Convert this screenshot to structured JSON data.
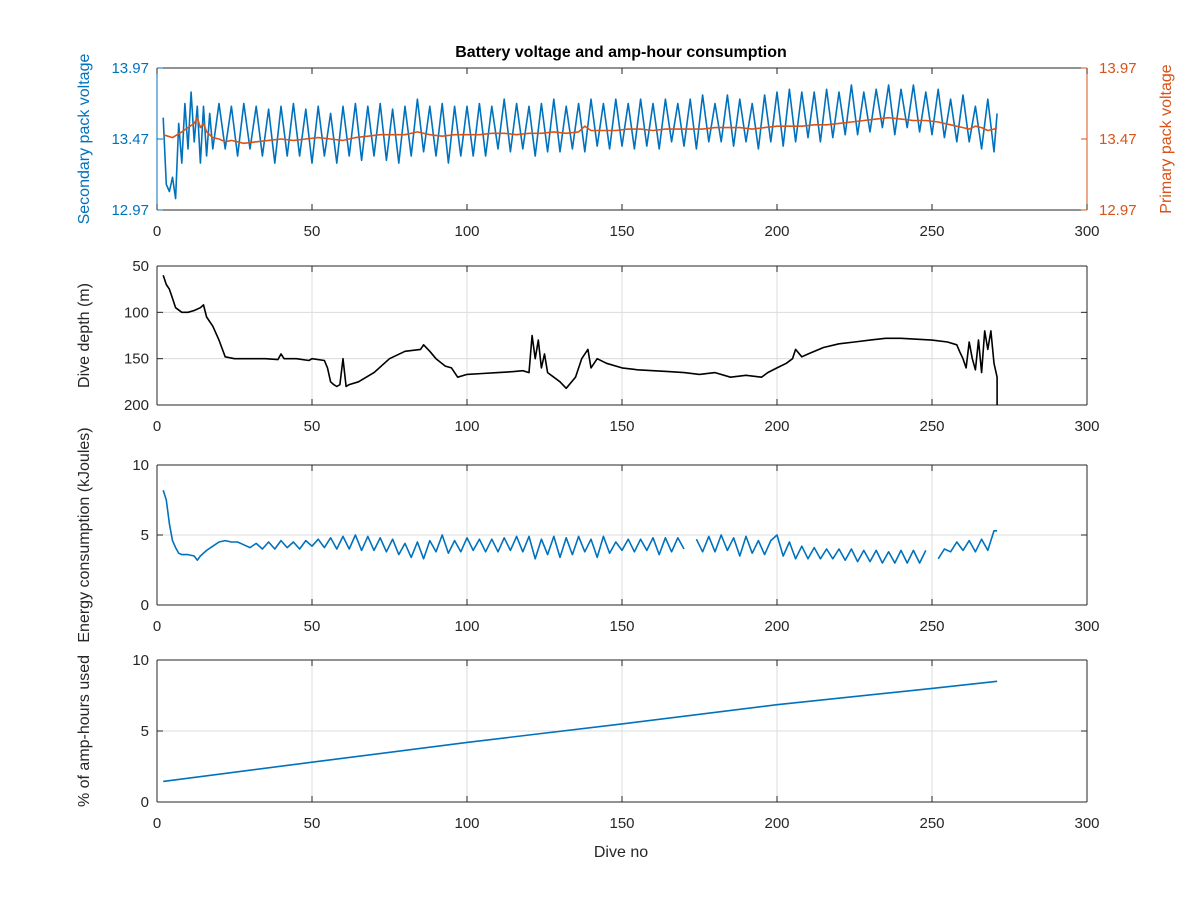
{
  "figure": {
    "title": "Battery voltage and amp-hour consumption",
    "xlabel": "Dive no"
  },
  "chart_data": [
    {
      "type": "line",
      "title": "Battery voltage and amp-hour consumption",
      "xlabel": "",
      "xlim": [
        0,
        300
      ],
      "xticks": [
        0,
        50,
        100,
        150,
        200,
        250,
        300
      ],
      "grid": false,
      "ylabel_left": "Secondary pack voltage",
      "ylabel_right": "Primary pack voltage",
      "ylim": [
        12.97,
        13.97
      ],
      "yticks": [
        12.97,
        13.47,
        13.97
      ],
      "colors": {
        "left": "#0072BD",
        "right": "#D95319"
      },
      "series": [
        {
          "axis": "left",
          "color": "#0072BD",
          "x": [
            2,
            3,
            4,
            5,
            6,
            7,
            8,
            9,
            10,
            11,
            12,
            13,
            14,
            15,
            16,
            17,
            18,
            20,
            22,
            24,
            26,
            28,
            30,
            32,
            34,
            36,
            38,
            40,
            42,
            44,
            46,
            48,
            50,
            52,
            54,
            56,
            58,
            60,
            62,
            64,
            66,
            68,
            70,
            72,
            74,
            76,
            78,
            80,
            82,
            84,
            86,
            88,
            90,
            92,
            94,
            96,
            98,
            100,
            102,
            104,
            106,
            108,
            110,
            112,
            114,
            116,
            118,
            120,
            122,
            124,
            126,
            128,
            130,
            132,
            134,
            136,
            138,
            140,
            142,
            144,
            146,
            148,
            150,
            152,
            154,
            156,
            158,
            160,
            162,
            164,
            166,
            168,
            170,
            172,
            174,
            176,
            178,
            180,
            182,
            184,
            186,
            188,
            190,
            192,
            194,
            196,
            198,
            200,
            202,
            204,
            206,
            208,
            210,
            212,
            214,
            216,
            218,
            220,
            222,
            224,
            226,
            228,
            230,
            232,
            234,
            236,
            238,
            240,
            242,
            244,
            246,
            248,
            250,
            252,
            254,
            256,
            258,
            260,
            262,
            264,
            266,
            268,
            270,
            271
          ],
          "values": [
            13.62,
            13.15,
            13.1,
            13.2,
            13.05,
            13.58,
            13.3,
            13.72,
            13.4,
            13.8,
            13.45,
            13.7,
            13.3,
            13.7,
            13.35,
            13.65,
            13.4,
            13.72,
            13.4,
            13.7,
            13.35,
            13.72,
            13.4,
            13.7,
            13.35,
            13.68,
            13.3,
            13.7,
            13.35,
            13.72,
            13.35,
            13.68,
            13.3,
            13.7,
            13.35,
            13.65,
            13.3,
            13.7,
            13.35,
            13.72,
            13.32,
            13.7,
            13.35,
            13.72,
            13.32,
            13.68,
            13.3,
            13.7,
            13.35,
            13.75,
            13.38,
            13.7,
            13.35,
            13.72,
            13.3,
            13.7,
            13.35,
            13.7,
            13.35,
            13.72,
            13.35,
            13.7,
            13.4,
            13.75,
            13.38,
            13.72,
            13.4,
            13.7,
            13.35,
            13.72,
            13.38,
            13.75,
            13.38,
            13.7,
            13.4,
            13.72,
            13.38,
            13.75,
            13.42,
            13.72,
            13.4,
            13.75,
            13.42,
            13.72,
            13.4,
            13.75,
            13.42,
            13.72,
            13.4,
            13.75,
            13.45,
            13.72,
            13.42,
            13.75,
            13.4,
            13.78,
            13.45,
            13.72,
            13.45,
            13.78,
            13.42,
            13.75,
            13.45,
            13.72,
            13.4,
            13.78,
            13.45,
            13.8,
            13.42,
            13.82,
            13.45,
            13.8,
            13.48,
            13.8,
            13.45,
            13.82,
            13.48,
            13.8,
            13.5,
            13.85,
            13.5,
            13.8,
            13.52,
            13.82,
            13.55,
            13.85,
            13.5,
            13.82,
            13.55,
            13.85,
            13.52,
            13.8,
            13.5,
            13.82,
            13.48,
            13.75,
            13.45,
            13.78,
            13.45,
            13.7,
            13.4,
            13.75,
            13.38,
            13.65
          ]
        },
        {
          "axis": "right",
          "color": "#D95319",
          "x": [
            2,
            5,
            8,
            10,
            12,
            13,
            14,
            15,
            16,
            18,
            20,
            22,
            24,
            28,
            32,
            36,
            40,
            44,
            48,
            52,
            56,
            60,
            64,
            68,
            72,
            76,
            80,
            84,
            88,
            92,
            96,
            100,
            104,
            108,
            112,
            116,
            120,
            124,
            128,
            132,
            136,
            138,
            140,
            144,
            148,
            152,
            156,
            160,
            164,
            168,
            172,
            176,
            180,
            184,
            188,
            192,
            196,
            200,
            204,
            208,
            212,
            216,
            220,
            224,
            228,
            232,
            236,
            240,
            244,
            248,
            252,
            256,
            260,
            262,
            264,
            266,
            268,
            270,
            271
          ],
          "values": [
            13.5,
            13.48,
            13.52,
            13.55,
            13.58,
            13.62,
            13.55,
            13.58,
            13.52,
            13.48,
            13.47,
            13.45,
            13.46,
            13.44,
            13.45,
            13.46,
            13.47,
            13.46,
            13.47,
            13.48,
            13.47,
            13.46,
            13.48,
            13.49,
            13.5,
            13.5,
            13.5,
            13.52,
            13.5,
            13.49,
            13.5,
            13.5,
            13.5,
            13.51,
            13.51,
            13.5,
            13.51,
            13.51,
            13.52,
            13.51,
            13.52,
            13.56,
            13.53,
            13.53,
            13.53,
            13.54,
            13.54,
            13.53,
            13.54,
            13.54,
            13.54,
            13.54,
            13.55,
            13.55,
            13.55,
            13.54,
            13.55,
            13.56,
            13.56,
            13.56,
            13.57,
            13.57,
            13.58,
            13.59,
            13.6,
            13.61,
            13.62,
            13.61,
            13.6,
            13.6,
            13.59,
            13.57,
            13.55,
            13.54,
            13.56,
            13.55,
            13.53,
            13.54,
            13.55
          ]
        }
      ]
    },
    {
      "type": "line",
      "xlim": [
        0,
        300
      ],
      "xticks": [
        0,
        50,
        100,
        150,
        200,
        250,
        300
      ],
      "ylabel": "Dive depth (m)",
      "ylim": [
        50,
        200
      ],
      "y_reversed": true,
      "yticks": [
        50,
        100,
        150,
        200
      ],
      "grid": true,
      "series": [
        {
          "color": "#000000",
          "x": [
            2,
            3,
            4,
            5,
            6,
            8,
            10,
            12,
            14,
            15,
            16,
            18,
            20,
            22,
            25,
            30,
            35,
            39,
            40,
            41,
            45,
            49,
            50,
            54,
            55,
            56,
            57,
            58,
            59,
            60,
            61,
            62,
            65,
            70,
            75,
            80,
            85,
            86,
            88,
            90,
            93,
            95,
            97,
            100,
            105,
            110,
            115,
            118,
            120,
            121,
            122,
            123,
            124,
            125,
            126,
            128,
            130,
            132,
            135,
            137,
            139,
            140,
            142,
            145,
            150,
            155,
            160,
            165,
            170,
            175,
            180,
            185,
            190,
            195,
            197,
            200,
            203,
            205,
            206,
            208,
            210,
            215,
            220,
            225,
            230,
            235,
            240,
            245,
            250,
            255,
            258,
            259,
            260,
            261,
            262,
            263,
            264,
            265,
            266,
            267,
            268,
            269,
            270,
            271
          ],
          "values": [
            60,
            70,
            75,
            85,
            95,
            100,
            100,
            98,
            95,
            92,
            105,
            115,
            130,
            148,
            150,
            150,
            150,
            151,
            145,
            150,
            150,
            152,
            150,
            152,
            160,
            175,
            178,
            180,
            178,
            150,
            180,
            178,
            175,
            165,
            150,
            142,
            140,
            135,
            142,
            150,
            158,
            160,
            170,
            167,
            166,
            165,
            164,
            163,
            165,
            125,
            150,
            130,
            160,
            145,
            165,
            170,
            175,
            182,
            170,
            150,
            140,
            160,
            150,
            155,
            160,
            162,
            163,
            164,
            165,
            167,
            165,
            170,
            168,
            170,
            165,
            160,
            155,
            150,
            140,
            148,
            145,
            138,
            134,
            132,
            130,
            128,
            128,
            129,
            130,
            132,
            135,
            143,
            150,
            160,
            132,
            150,
            162,
            130,
            165,
            120,
            140,
            120,
            155,
            170
          ],
          "bottom_drop": [
            [
              271,
              200
            ]
          ]
        }
      ]
    },
    {
      "type": "line",
      "xlim": [
        0,
        300
      ],
      "xticks": [
        0,
        50,
        100,
        150,
        200,
        250,
        300
      ],
      "ylabel": "Energy consumption (kJoules)",
      "ylim": [
        0,
        10
      ],
      "yticks": [
        0,
        5,
        10
      ],
      "grid": true,
      "series": [
        {
          "color": "#0072BD",
          "x": [
            2,
            3,
            4,
            5,
            6,
            7,
            8,
            10,
            12,
            13,
            14,
            16,
            18,
            20,
            22,
            24,
            26,
            28,
            30,
            32,
            34,
            36,
            38,
            40,
            42,
            44,
            46,
            48,
            50,
            52,
            54,
            56,
            58,
            60,
            62,
            64,
            66,
            68,
            70,
            72,
            74,
            76,
            78,
            80,
            82,
            84,
            86,
            88,
            90,
            92,
            94,
            96,
            98,
            100,
            102,
            104,
            106,
            108,
            110,
            112,
            114,
            116,
            118,
            120,
            122,
            124,
            126,
            128,
            130,
            132,
            134,
            136,
            138,
            140,
            142,
            144,
            146,
            148,
            150,
            152,
            154,
            156,
            158,
            160,
            162,
            164,
            166,
            168,
            170,
            null,
            174,
            176,
            178,
            180,
            182,
            184,
            186,
            188,
            190,
            192,
            194,
            196,
            198,
            200,
            202,
            204,
            206,
            208,
            210,
            212,
            214,
            216,
            218,
            220,
            222,
            224,
            226,
            228,
            230,
            232,
            234,
            236,
            238,
            240,
            242,
            244,
            246,
            248,
            null,
            252,
            254,
            256,
            258,
            260,
            262,
            264,
            266,
            268,
            270,
            271
          ],
          "values": [
            8.2,
            7.5,
            5.8,
            4.6,
            4.1,
            3.7,
            3.6,
            3.6,
            3.5,
            3.2,
            3.5,
            3.9,
            4.2,
            4.5,
            4.6,
            4.5,
            4.5,
            4.3,
            4.1,
            4.4,
            4.0,
            4.5,
            4.0,
            4.6,
            4.1,
            4.5,
            4.0,
            4.6,
            4.2,
            4.7,
            4.1,
            4.8,
            4.0,
            4.9,
            4.0,
            5.0,
            3.9,
            4.9,
            3.9,
            4.8,
            3.8,
            4.7,
            3.6,
            4.4,
            3.4,
            4.5,
            3.3,
            4.6,
            3.8,
            5.0,
            3.7,
            4.6,
            3.8,
            4.8,
            3.9,
            4.7,
            3.8,
            4.7,
            3.8,
            4.8,
            3.9,
            4.9,
            3.8,
            4.9,
            3.3,
            4.7,
            3.6,
            4.9,
            3.4,
            4.8,
            3.6,
            4.9,
            3.8,
            4.7,
            3.4,
            4.9,
            3.7,
            4.5,
            3.9,
            4.7,
            3.8,
            4.7,
            3.9,
            4.8,
            3.6,
            4.8,
            3.8,
            4.8,
            4.0,
            null,
            4.7,
            3.8,
            4.9,
            3.8,
            5.0,
            3.9,
            4.8,
            3.5,
            4.9,
            3.7,
            4.6,
            3.6,
            4.6,
            5.0,
            3.5,
            4.5,
            3.3,
            4.2,
            3.3,
            4.1,
            3.3,
            4.0,
            3.3,
            4.0,
            3.2,
            4.0,
            3.1,
            3.9,
            3.1,
            3.9,
            3.0,
            3.8,
            3.0,
            3.9,
            3.0,
            3.9,
            3.0,
            3.9,
            null,
            3.3,
            4.0,
            3.8,
            4.5,
            3.9,
            4.6,
            3.8,
            4.7,
            3.9,
            5.3,
            5.3
          ]
        }
      ]
    },
    {
      "type": "line",
      "xlabel": "Dive no",
      "xlim": [
        0,
        300
      ],
      "xticks": [
        0,
        50,
        100,
        150,
        200,
        250,
        300
      ],
      "ylabel": "% of amp-hours used",
      "ylim": [
        0,
        10
      ],
      "yticks": [
        0,
        5,
        10
      ],
      "grid": true,
      "series": [
        {
          "color": "#0072BD",
          "x": [
            2,
            50,
            100,
            150,
            200,
            250,
            271
          ],
          "values": [
            1.45,
            2.8,
            4.2,
            5.5,
            6.85,
            8.0,
            8.5
          ]
        }
      ]
    }
  ]
}
